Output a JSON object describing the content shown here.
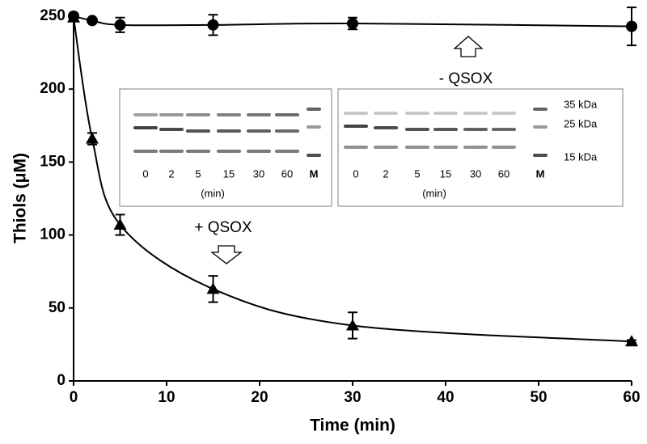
{
  "chart_data": {
    "type": "line",
    "x_label": "Time (min)",
    "y_label": "Thiols (μM)",
    "x": [
      0,
      2,
      5,
      15,
      30,
      60
    ],
    "series": [
      {
        "name": "- QSOX",
        "marker": "circle",
        "color": "#000000",
        "values": [
          250,
          247,
          244,
          244,
          245,
          243
        ],
        "errors": [
          2,
          1,
          5,
          7,
          4,
          13
        ]
      },
      {
        "name": "+ QSOX",
        "marker": "triangle",
        "color": "#000000",
        "values": [
          249,
          166,
          107,
          63,
          38,
          27
        ],
        "errors": [
          2,
          4,
          7,
          9,
          9,
          1
        ]
      }
    ],
    "xlim": [
      0,
      60
    ],
    "xticks": [
      0,
      10,
      20,
      30,
      40,
      50,
      60
    ],
    "ylim": [
      0,
      250
    ],
    "yticks": [
      0,
      50,
      100,
      150,
      200,
      250
    ]
  },
  "insets": [
    {
      "lanes": [
        "0",
        "2",
        "5",
        "15",
        "30",
        "60",
        "M"
      ],
      "unit": "(min)"
    },
    {
      "lanes": [
        "0",
        "2",
        "5",
        "15",
        "30",
        "60",
        "M"
      ],
      "unit": "(min)",
      "markers": [
        "35 kDa",
        "25 kDa",
        "15 kDa"
      ]
    }
  ]
}
